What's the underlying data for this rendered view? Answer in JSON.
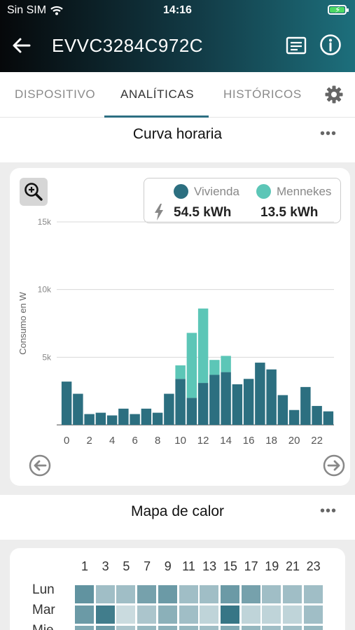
{
  "status": {
    "carrier": "Sin SIM",
    "time": "14:16"
  },
  "appbar": {
    "title": "EVVC3284C972C"
  },
  "tabs": [
    {
      "label": "DISPOSITIVO"
    },
    {
      "label": "ANALÍTICAS"
    },
    {
      "label": "HISTÓRICOS"
    }
  ],
  "hourly": {
    "title": "Curva horaria",
    "more": "•••"
  },
  "legend": {
    "vivienda_label": "Vivienda",
    "mennekes_label": "Mennekes",
    "vivienda_value": "54.5 kWh",
    "mennekes_value": "13.5 kWh"
  },
  "colors": {
    "vivienda": "#2c6f80",
    "mennekes": "#5cc6b7",
    "accent": "#2d6f82"
  },
  "chart_data": {
    "type": "bar",
    "stacked": true,
    "ylabel": "Consumo en W",
    "ylim": [
      0,
      15000
    ],
    "yticks": [
      5000,
      10000,
      15000
    ],
    "ytick_labels": [
      "5k",
      "10k",
      "15k"
    ],
    "xtick_labels": [
      "0",
      "2",
      "4",
      "6",
      "8",
      "10",
      "12",
      "14",
      "16",
      "18",
      "20",
      "22"
    ],
    "categories": [
      0,
      1,
      2,
      3,
      4,
      5,
      6,
      7,
      8,
      9,
      10,
      11,
      12,
      13,
      14,
      15,
      16,
      17,
      18,
      19,
      20,
      21,
      22,
      23
    ],
    "grid": true,
    "series": [
      {
        "name": "Vivienda",
        "values": [
          3200,
          2300,
          800,
          900,
          700,
          1200,
          800,
          1200,
          900,
          2300,
          3400,
          2000,
          3100,
          3700,
          3900,
          3000,
          3400,
          4600,
          4100,
          2200,
          1100,
          2800,
          1400,
          1000
        ]
      },
      {
        "name": "Mennekes",
        "values": [
          0,
          0,
          0,
          0,
          0,
          0,
          0,
          0,
          0,
          0,
          1000,
          4800,
          5500,
          1100,
          1200,
          0,
          0,
          0,
          0,
          0,
          0,
          0,
          0,
          0
        ]
      }
    ]
  },
  "heatmap": {
    "title": "Mapa de calor",
    "more": "•••",
    "x_labels": [
      "1",
      "3",
      "5",
      "7",
      "9",
      "11",
      "13",
      "15",
      "17",
      "19",
      "21",
      "23"
    ],
    "y_labels": [
      "Lun",
      "Mar",
      "Mie"
    ],
    "levels": [
      [
        0.75,
        0.45,
        0.45,
        0.65,
        0.7,
        0.45,
        0.45,
        0.7,
        0.65,
        0.45,
        0.45,
        0.45
      ],
      [
        0.7,
        0.9,
        0.25,
        0.4,
        0.55,
        0.45,
        0.3,
        0.95,
        0.3,
        0.3,
        0.3,
        0.45
      ],
      [
        0.6,
        0.7,
        0.4,
        0.5,
        0.55,
        0.5,
        0.45,
        0.6,
        0.5,
        0.45,
        0.45,
        0.5
      ]
    ]
  }
}
